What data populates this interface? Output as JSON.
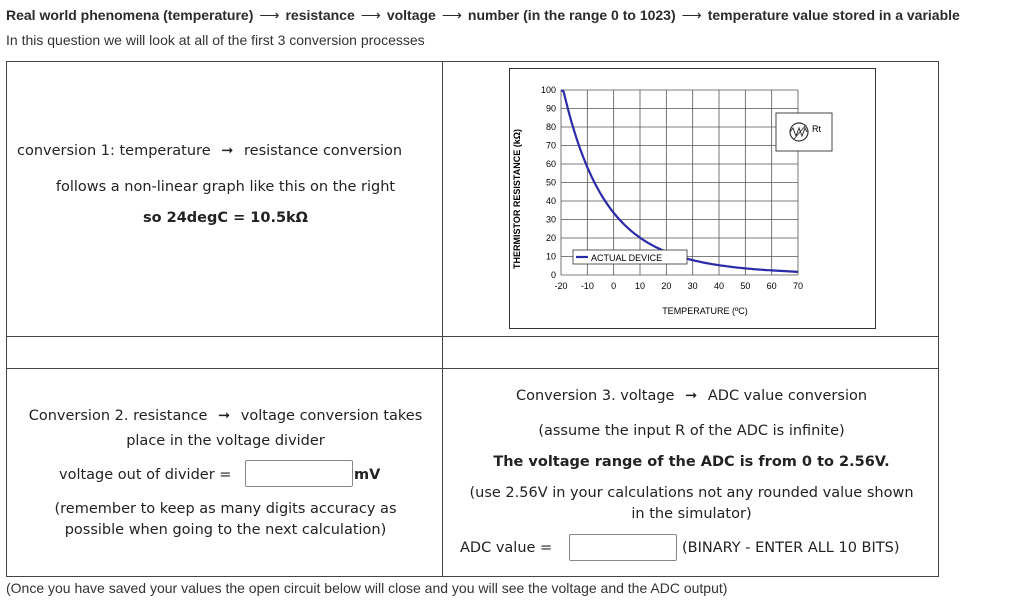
{
  "header": {
    "items": [
      "Real world phenomena (temperature)",
      "resistance",
      "voltage",
      "number (in the range 0 to 1023)",
      "temperature value stored in a variable"
    ],
    "arrow": "⟶"
  },
  "subtitle": "In this question we will look at all of the first 3 conversion processes",
  "conv1": {
    "line1a": "conversion 1: temperature",
    "line1b": "resistance conversion",
    "line2": "follows a non-linear graph like this on the right",
    "line3": "so 24degC = 10.5kΩ",
    "arrow": "➞"
  },
  "graph": {
    "ylabel": "THERMISTOR RESISTANCE (kΩ)",
    "xlabel": "TEMPERATURE (ºC)",
    "legend": "ACTUAL DEVICE",
    "component_label": "Rt",
    "yticks": [
      "100",
      "90",
      "80",
      "70",
      "60",
      "50",
      "40",
      "30",
      "20",
      "10",
      "0"
    ],
    "xticks": [
      "-20",
      "-10",
      "0",
      "10",
      "20",
      "30",
      "40",
      "50",
      "60",
      "70"
    ]
  },
  "conv2": {
    "line1a": "Conversion 2. resistance",
    "line1b": "voltage conversion takes",
    "line2": "place in the voltage divider",
    "label": "voltage out of divider =",
    "unit": "mV",
    "note1": "(remember to keep as many digits accuracy as",
    "note2": "possible when going to the next calculation)",
    "arrow": "➞"
  },
  "conv3": {
    "line1a": "Conversion 3. voltage",
    "line1b": "ADC value conversion",
    "line2": "(assume the input R of the ADC is infinite)",
    "line3": "The voltage range of the ADC is from 0 to 2.56V.",
    "line4": "(use 2.56V in your calculations not any rounded value shown",
    "line5": "in the simulator)",
    "label": "ADC value =",
    "suffix": "(BINARY - ENTER ALL 10 BITS)",
    "arrow": "➞"
  },
  "inputs": {
    "voltage": "",
    "adc": ""
  },
  "footer": "(Once you have saved your values the open circuit below will close and you will see the voltage and the ADC output)"
}
